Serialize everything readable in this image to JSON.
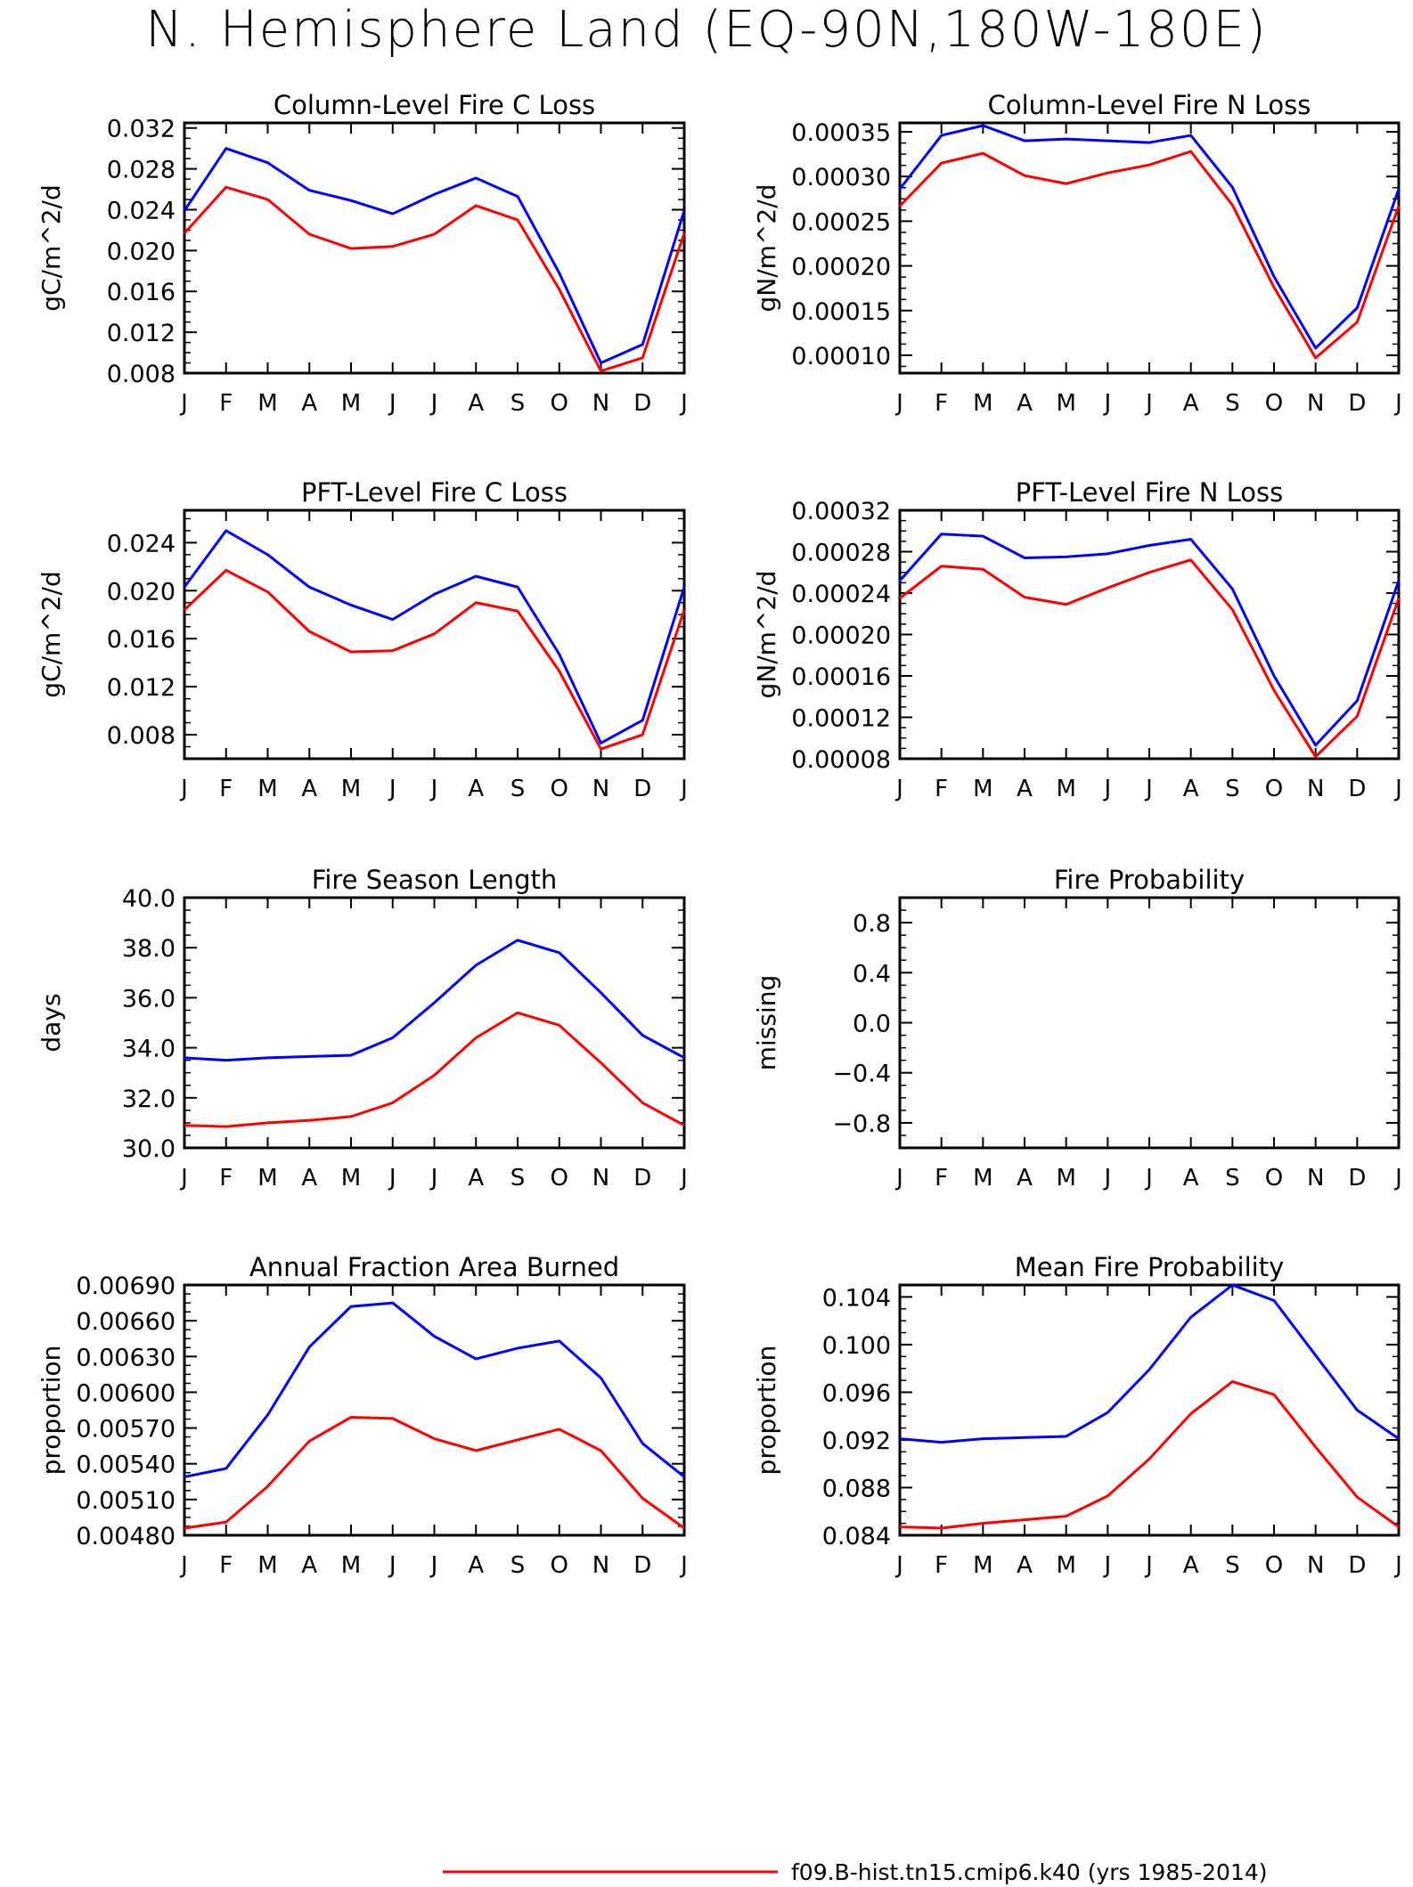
{
  "title": "N. Hemisphere Land (EQ-90N,180W-180E)",
  "months": [
    "J",
    "F",
    "M",
    "A",
    "M",
    "J",
    "J",
    "A",
    "S",
    "O",
    "N",
    "D",
    "J"
  ],
  "colors": {
    "series_a": "#0000ff",
    "series_b": "#ff0000",
    "axis": "#000000"
  },
  "legend": [
    {
      "label": "f09.B-hist.tn15.cmip6.k40 (yrs 1985-2014)",
      "color": "#ff0000"
    }
  ],
  "chart_data": [
    {
      "type": "line",
      "title": "Column-Level Fire C Loss",
      "ylabel": "gC/m^2/d",
      "ylim": [
        0.008,
        0.0325
      ],
      "yticks": [
        "0.008",
        "0.012",
        "0.016",
        "0.020",
        "0.024",
        "0.028",
        "0.032"
      ],
      "x": [
        "J",
        "F",
        "M",
        "A",
        "M",
        "J",
        "J",
        "A",
        "S",
        "O",
        "N",
        "D",
        "J"
      ],
      "series": [
        {
          "color": "#0000ff",
          "values": [
            0.0239,
            0.03,
            0.0286,
            0.0259,
            0.0249,
            0.0236,
            0.0255,
            0.0271,
            0.0253,
            0.0178,
            0.009,
            0.0108,
            0.0239
          ]
        },
        {
          "color": "#ff0000",
          "values": [
            0.0217,
            0.0262,
            0.025,
            0.0216,
            0.0202,
            0.0204,
            0.0216,
            0.0244,
            0.023,
            0.0162,
            0.0082,
            0.0095,
            0.0217
          ]
        }
      ]
    },
    {
      "type": "line",
      "title": "Column-Level Fire N Loss",
      "ylabel": "gN/m^2/d",
      "ylim": [
        8e-05,
        0.00036
      ],
      "yticks": [
        "0.00010",
        "0.00015",
        "0.00020",
        "0.00025",
        "0.00030",
        "0.00035"
      ],
      "x": [
        "J",
        "F",
        "M",
        "A",
        "M",
        "J",
        "J",
        "A",
        "S",
        "O",
        "N",
        "D",
        "J"
      ],
      "series": [
        {
          "color": "#0000ff",
          "values": [
            0.000286,
            0.000346,
            0.000357,
            0.00034,
            0.000342,
            0.00034,
            0.000338,
            0.000346,
            0.000288,
            0.000188,
            0.000108,
            0.000153,
            0.000286
          ]
        },
        {
          "color": "#ff0000",
          "values": [
            0.000267,
            0.000315,
            0.000326,
            0.000301,
            0.000292,
            0.000304,
            0.000313,
            0.000328,
            0.000268,
            0.000176,
            9.7e-05,
            0.000137,
            0.000267
          ]
        }
      ]
    },
    {
      "type": "line",
      "title": "PFT-Level Fire C Loss",
      "ylabel": "gC/m^2/d",
      "ylim": [
        0.006,
        0.0267
      ],
      "yticks": [
        "0.008",
        "0.012",
        "0.016",
        "0.020",
        "0.024"
      ],
      "x": [
        "J",
        "F",
        "M",
        "A",
        "M",
        "J",
        "J",
        "A",
        "S",
        "O",
        "N",
        "D",
        "J"
      ],
      "series": [
        {
          "color": "#0000ff",
          "values": [
            0.0203,
            0.025,
            0.023,
            0.0203,
            0.0188,
            0.0176,
            0.0197,
            0.0212,
            0.0203,
            0.0147,
            0.0073,
            0.0092,
            0.0203
          ]
        },
        {
          "color": "#ff0000",
          "values": [
            0.0184,
            0.0217,
            0.0199,
            0.0166,
            0.0149,
            0.015,
            0.0164,
            0.019,
            0.0183,
            0.0133,
            0.0068,
            0.008,
            0.0184
          ]
        }
      ]
    },
    {
      "type": "line",
      "title": "PFT-Level Fire N Loss",
      "ylabel": "gN/m^2/d",
      "ylim": [
        8e-05,
        0.00032
      ],
      "yticks": [
        "0.00008",
        "0.00012",
        "0.00016",
        "0.00020",
        "0.00024",
        "0.00028",
        "0.00032"
      ],
      "x": [
        "J",
        "F",
        "M",
        "A",
        "M",
        "J",
        "J",
        "A",
        "S",
        "O",
        "N",
        "D",
        "J"
      ],
      "series": [
        {
          "color": "#0000ff",
          "values": [
            0.000252,
            0.000297,
            0.000295,
            0.000274,
            0.000275,
            0.000278,
            0.000286,
            0.000292,
            0.000244,
            0.00016,
            9.3e-05,
            0.000136,
            0.000252
          ]
        },
        {
          "color": "#ff0000",
          "values": [
            0.000235,
            0.000266,
            0.000263,
            0.000236,
            0.000229,
            0.000245,
            0.00026,
            0.000272,
            0.000224,
            0.000146,
            8.2e-05,
            0.000121,
            0.000235
          ]
        }
      ]
    },
    {
      "type": "line",
      "title": "Fire Season Length",
      "ylabel": "days",
      "ylim": [
        30.0,
        40.0
      ],
      "yticks": [
        "30.0",
        "32.0",
        "34.0",
        "36.0",
        "38.0",
        "40.0"
      ],
      "x": [
        "J",
        "F",
        "M",
        "A",
        "M",
        "J",
        "J",
        "A",
        "S",
        "O",
        "N",
        "D",
        "J"
      ],
      "series": [
        {
          "color": "#0000ff",
          "values": [
            33.6,
            33.5,
            33.6,
            33.65,
            33.7,
            34.4,
            35.8,
            37.3,
            38.3,
            37.8,
            36.2,
            34.5,
            33.6
          ]
        },
        {
          "color": "#ff0000",
          "values": [
            30.9,
            30.85,
            31.0,
            31.1,
            31.25,
            31.8,
            32.9,
            34.4,
            35.4,
            34.9,
            33.4,
            31.8,
            30.9
          ]
        }
      ]
    },
    {
      "type": "line",
      "title": "Fire Probability",
      "ylabel": "missing",
      "ylim": [
        -1.0,
        1.0
      ],
      "yticks": [
        "-0.8",
        "-0.4",
        "0.0",
        "0.4",
        "0.8"
      ],
      "x": [
        "J",
        "F",
        "M",
        "A",
        "M",
        "J",
        "J",
        "A",
        "S",
        "O",
        "N",
        "D",
        "J"
      ],
      "series": []
    },
    {
      "type": "line",
      "title": "Annual Fraction Area Burned",
      "ylabel": "proportion",
      "ylim": [
        0.0048,
        0.0069
      ],
      "yticks": [
        "0.00480",
        "0.00510",
        "0.00540",
        "0.00570",
        "0.00600",
        "0.00630",
        "0.00660",
        "0.00690"
      ],
      "x": [
        "J",
        "F",
        "M",
        "A",
        "M",
        "J",
        "J",
        "A",
        "S",
        "O",
        "N",
        "D",
        "J"
      ],
      "series": [
        {
          "color": "#0000ff",
          "values": [
            0.00529,
            0.00536,
            0.00581,
            0.00638,
            0.00672,
            0.00675,
            0.00647,
            0.00628,
            0.00637,
            0.00643,
            0.00612,
            0.00557,
            0.00529
          ]
        },
        {
          "color": "#ff0000",
          "values": [
            0.00486,
            0.00491,
            0.00521,
            0.00559,
            0.00579,
            0.00578,
            0.00561,
            0.00551,
            0.0056,
            0.00569,
            0.00551,
            0.00511,
            0.00486
          ]
        }
      ]
    },
    {
      "type": "line",
      "title": "Mean Fire Probability",
      "ylabel": "proportion",
      "ylim": [
        0.084,
        0.105
      ],
      "yticks": [
        "0.084",
        "0.088",
        "0.092",
        "0.096",
        "0.100",
        "0.104"
      ],
      "x": [
        "J",
        "F",
        "M",
        "A",
        "M",
        "J",
        "J",
        "A",
        "S",
        "O",
        "N",
        "D",
        "J"
      ],
      "series": [
        {
          "color": "#0000ff",
          "values": [
            0.0921,
            0.0918,
            0.0921,
            0.0922,
            0.0923,
            0.0943,
            0.0979,
            0.1023,
            0.105,
            0.1037,
            0.0991,
            0.0945,
            0.0921
          ]
        },
        {
          "color": "#ff0000",
          "values": [
            0.0847,
            0.0846,
            0.085,
            0.0853,
            0.0856,
            0.0873,
            0.0904,
            0.0942,
            0.0969,
            0.0958,
            0.0914,
            0.0872,
            0.0847
          ]
        }
      ]
    }
  ]
}
